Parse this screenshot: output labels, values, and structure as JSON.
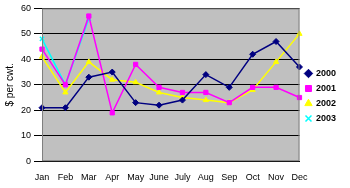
{
  "chart_data": {
    "type": "line",
    "y_label": "$ per cwt.",
    "categories": [
      "Jan",
      "Feb",
      "Mar",
      "Apr",
      "May",
      "June",
      "July",
      "Aug",
      "Sep",
      "Oct",
      "Nov",
      "Dec"
    ],
    "series": [
      {
        "name": "2000",
        "color": "#000080",
        "marker": "diamond",
        "values": [
          21,
          21,
          33,
          35,
          23,
          22,
          24,
          34,
          29,
          42,
          47,
          37
        ]
      },
      {
        "name": "2001",
        "color": "#ff00ff",
        "marker": "square",
        "values": [
          44,
          30,
          57,
          19,
          38,
          29,
          27,
          27,
          23,
          29,
          29,
          25
        ]
      },
      {
        "name": "2002",
        "color": "#ffff00",
        "marker": "triangle",
        "values": [
          41,
          27,
          39,
          32,
          31,
          27,
          25,
          24,
          23,
          28,
          39,
          50
        ]
      },
      {
        "name": "2003",
        "color": "#00ffff",
        "marker": "x",
        "values": [
          48,
          30,
          56,
          null,
          null,
          null,
          null,
          null,
          null,
          null,
          null,
          null
        ]
      }
    ],
    "ylim": [
      0,
      60
    ],
    "yticks": [
      0,
      10,
      20,
      30,
      40,
      50,
      60
    ],
    "grid": true,
    "legend": "right"
  }
}
